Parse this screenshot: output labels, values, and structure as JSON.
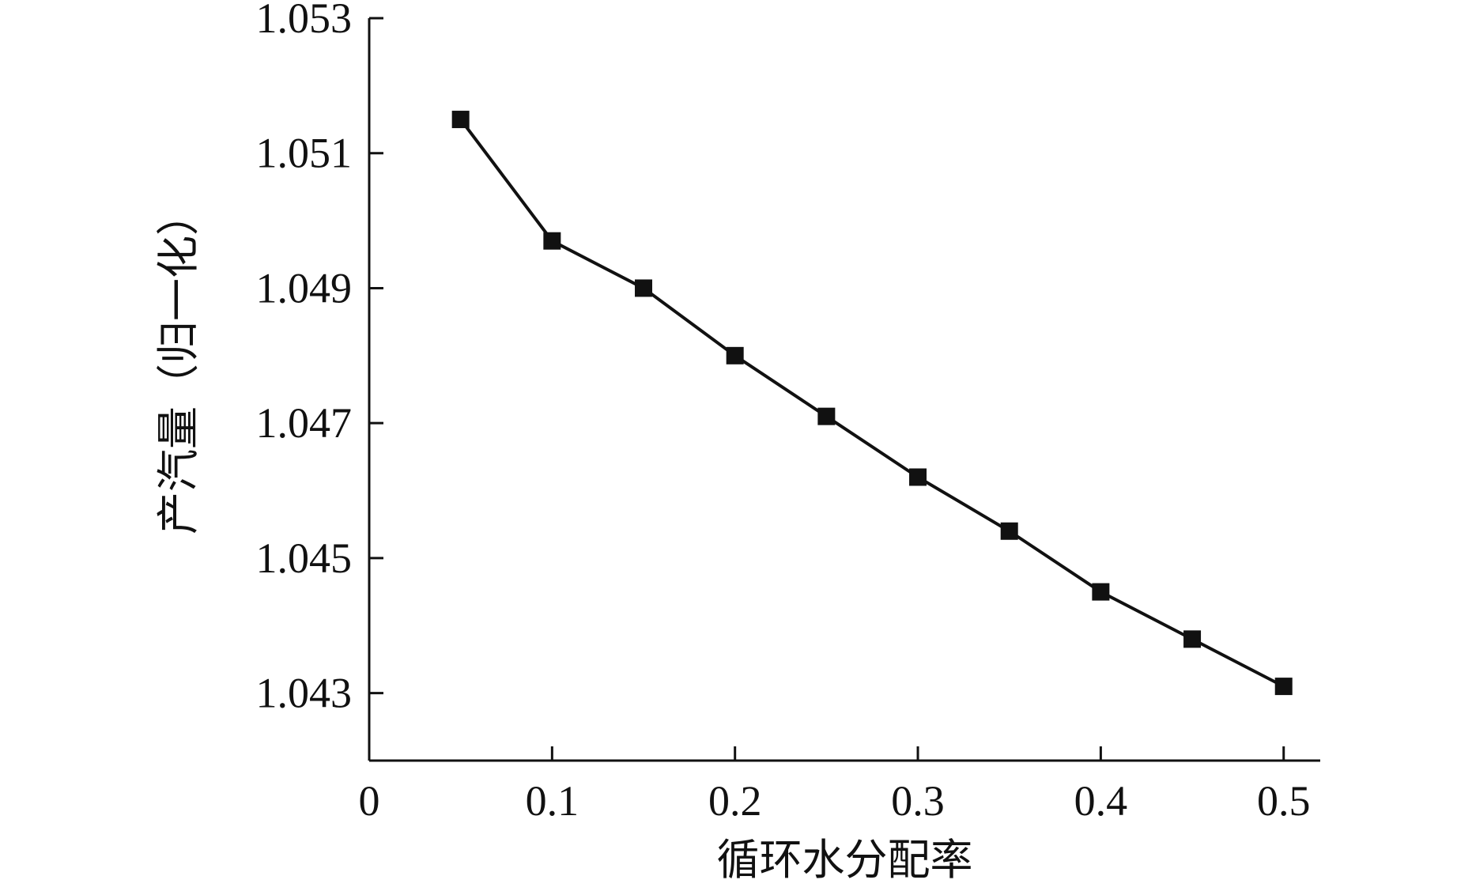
{
  "chart_data": {
    "type": "line",
    "title": "",
    "xlabel": "循环水分配率",
    "ylabel": "产汽量（归一化）",
    "xlim": [
      0,
      0.52
    ],
    "ylim": [
      1.042,
      1.053
    ],
    "x_ticks": [
      0,
      0.1,
      0.2,
      0.3,
      0.4,
      0.5
    ],
    "x_tick_labels": [
      "0",
      "0.1",
      "0.2",
      "0.3",
      "0.4",
      "0.5"
    ],
    "y_ticks": [
      1.043,
      1.045,
      1.047,
      1.049,
      1.051,
      1.053
    ],
    "y_tick_labels": [
      "1.043",
      "1.045",
      "1.047",
      "1.049",
      "1.051",
      "1.053"
    ],
    "grid": false,
    "legend": "none",
    "series": [
      {
        "x": [
          0.05,
          0.1,
          0.15,
          0.2,
          0.25,
          0.3,
          0.35,
          0.4,
          0.45,
          0.5
        ],
        "values": [
          1.0515,
          1.0497,
          1.049,
          1.048,
          1.0471,
          1.0462,
          1.0454,
          1.0445,
          1.0438,
          1.0431
        ],
        "marker": "square",
        "color": "#111111"
      }
    ]
  }
}
